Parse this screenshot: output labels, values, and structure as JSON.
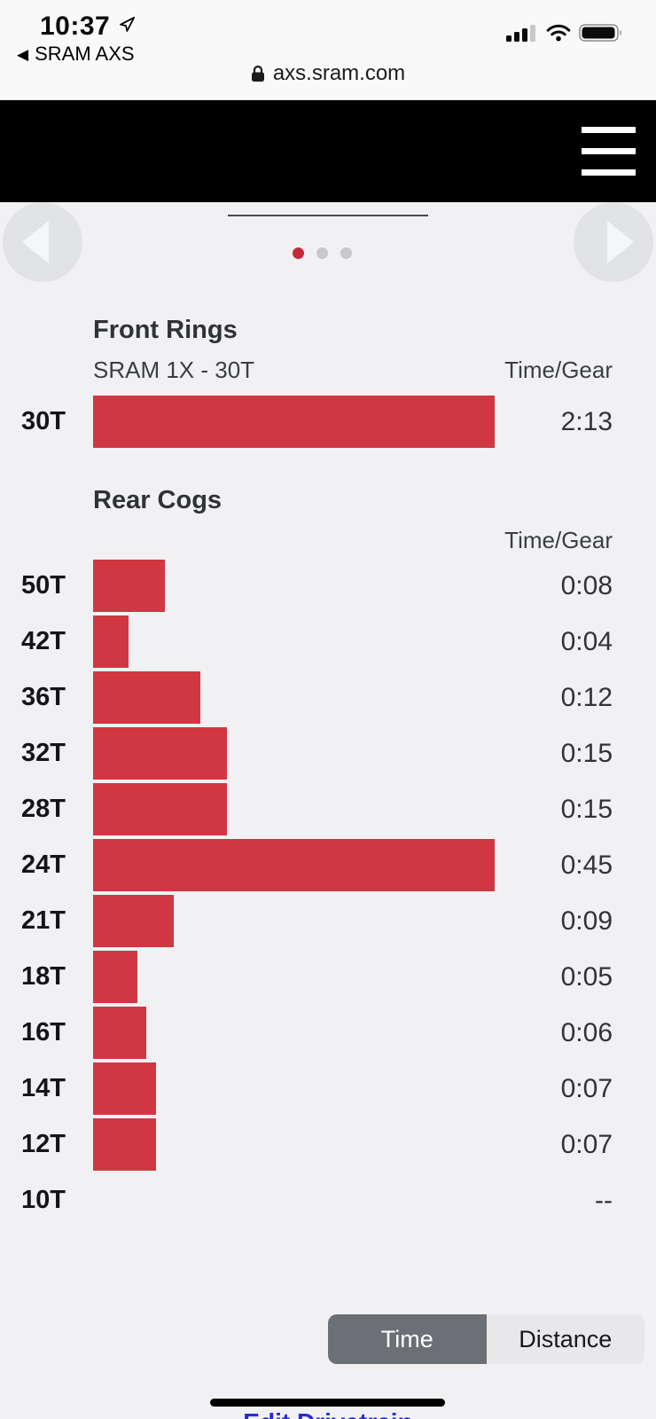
{
  "status_bar": {
    "time": "10:37",
    "back_to_app_label": "SRAM AXS",
    "signal": "3 of 4 bars",
    "wifi": "on",
    "battery": "full"
  },
  "url_bar": {
    "url": "axs.sram.com",
    "secure": "lock"
  },
  "carousel": {
    "dot_count": 3,
    "active_dot_index": 0
  },
  "front_rings": {
    "title": "Front Rings",
    "subtitle": "SRAM 1X - 30T",
    "col_header": "Time/Gear",
    "rows": [
      {
        "label": "30T",
        "value": "2:13",
        "pct": 100
      }
    ]
  },
  "rear_cogs": {
    "title": "Rear Cogs",
    "col_header": "Time/Gear",
    "rows": [
      {
        "label": "50T",
        "value": "0:08",
        "pct": 17.8
      },
      {
        "label": "42T",
        "value": "0:04",
        "pct": 8.9
      },
      {
        "label": "36T",
        "value": "0:12",
        "pct": 26.7
      },
      {
        "label": "32T",
        "value": "0:15",
        "pct": 33.3
      },
      {
        "label": "28T",
        "value": "0:15",
        "pct": 33.3
      },
      {
        "label": "24T",
        "value": "0:45",
        "pct": 100
      },
      {
        "label": "21T",
        "value": "0:09",
        "pct": 20
      },
      {
        "label": "18T",
        "value": "0:05",
        "pct": 11.1
      },
      {
        "label": "16T",
        "value": "0:06",
        "pct": 13.3
      },
      {
        "label": "14T",
        "value": "0:07",
        "pct": 15.6
      },
      {
        "label": "12T",
        "value": "0:07",
        "pct": 15.6
      },
      {
        "label": "10T",
        "value": "--",
        "pct": 0
      }
    ]
  },
  "toggle": {
    "options": [
      "Time",
      "Distance"
    ],
    "selected": "Time"
  },
  "footer": {
    "edit_link": "Edit Drivetrain"
  },
  "colors": {
    "bar": "#D03742",
    "accent_red": "#C62A38",
    "selected_button_bg": "#6C6F73",
    "link_blue": "#2929D6",
    "page_bg": "#F1F1F3",
    "header_bg": "#000000"
  },
  "chart_data": [
    {
      "type": "bar",
      "orientation": "horizontal",
      "title": "Front Rings",
      "subtitle": "SRAM 1X - 30T",
      "value_column": "Time/Gear",
      "categories": [
        "30T"
      ],
      "values_seconds": [
        133
      ],
      "value_labels": [
        "2:13"
      ],
      "xlim_seconds": [
        0,
        133
      ]
    },
    {
      "type": "bar",
      "orientation": "horizontal",
      "title": "Rear Cogs",
      "value_column": "Time/Gear",
      "categories": [
        "50T",
        "42T",
        "36T",
        "32T",
        "28T",
        "24T",
        "21T",
        "18T",
        "16T",
        "14T",
        "12T",
        "10T"
      ],
      "values_seconds": [
        8,
        4,
        12,
        15,
        15,
        45,
        9,
        5,
        6,
        7,
        7,
        null
      ],
      "value_labels": [
        "0:08",
        "0:04",
        "0:12",
        "0:15",
        "0:15",
        "0:45",
        "0:09",
        "0:05",
        "0:06",
        "0:07",
        "0:07",
        "--"
      ],
      "xlim_seconds": [
        0,
        45
      ]
    }
  ]
}
